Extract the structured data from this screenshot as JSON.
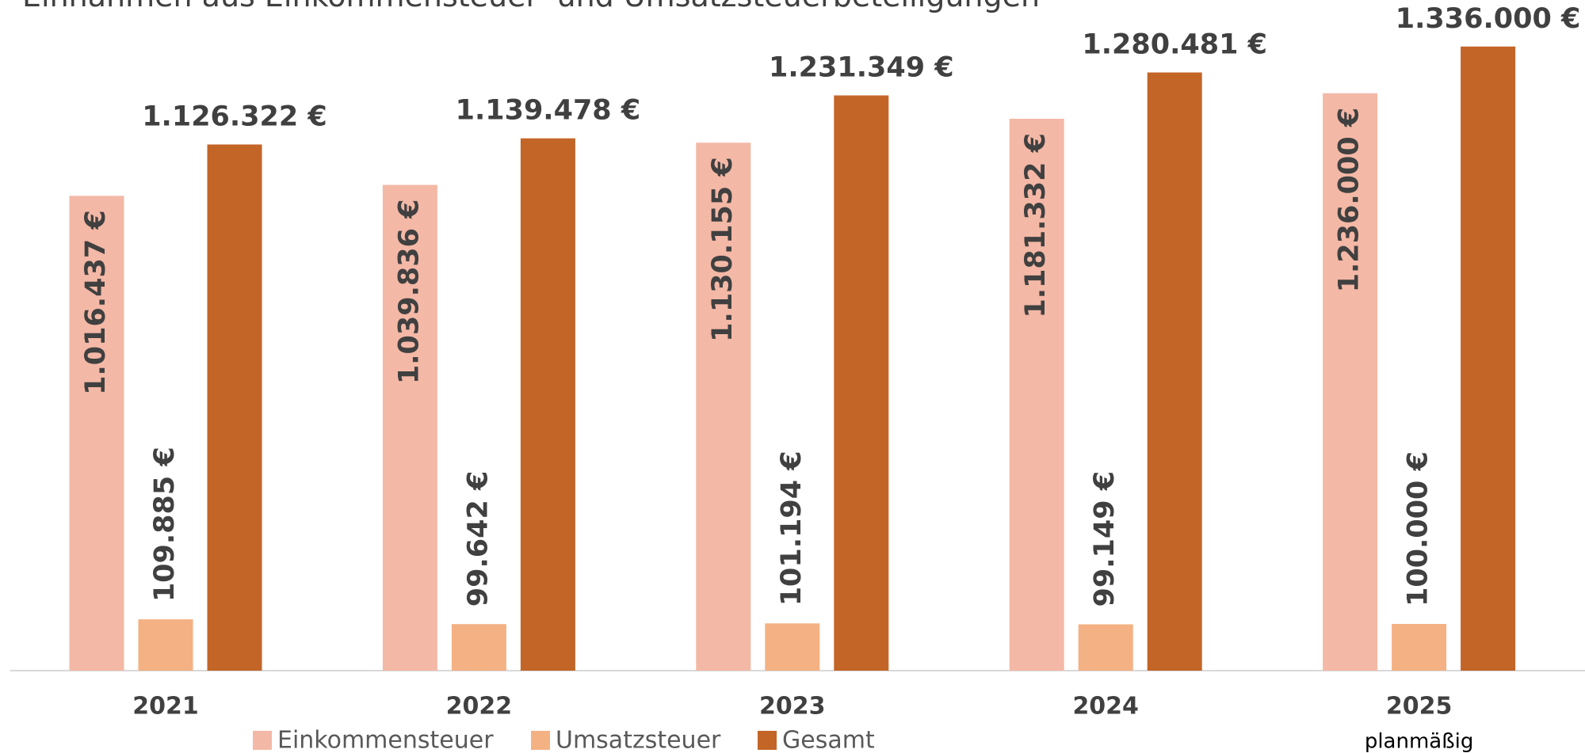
{
  "chart_data": {
    "type": "bar",
    "title": "Einnahmen aus Einkommensteuer- und Umsatzsteuerbeteiligungen",
    "categories": [
      "2021",
      "2022",
      "2023",
      "2024",
      "2025"
    ],
    "annotation": "planmäßig",
    "series": [
      {
        "name": "Einkommensteuer",
        "color": "#f4b8a6",
        "values": [
          1016437,
          1039836,
          1130155,
          1181332,
          1236000
        ],
        "value_labels": [
          "1.016.437 €",
          "1.039.836 €",
          "1.130.155 €",
          "1.181.332 €",
          "1.236.000 €"
        ]
      },
      {
        "name": "Umsatzsteuer",
        "color": "#f4b183",
        "values": [
          109885,
          99642,
          101194,
          99149,
          100000
        ],
        "value_labels": [
          "109.885 €",
          "99.642 €",
          "101.194 €",
          "99.149 €",
          "100.000 €"
        ]
      },
      {
        "name": "Gesamt",
        "color": "#c36527",
        "values": [
          1126322,
          1139478,
          1231349,
          1280481,
          1336000
        ],
        "value_labels": [
          "1.126.322 €",
          "1.139.478 €",
          "1.231.349 €",
          "1.280.481 €",
          "1.336.000 €"
        ]
      }
    ],
    "ylim": [
      0,
      1400000
    ]
  }
}
